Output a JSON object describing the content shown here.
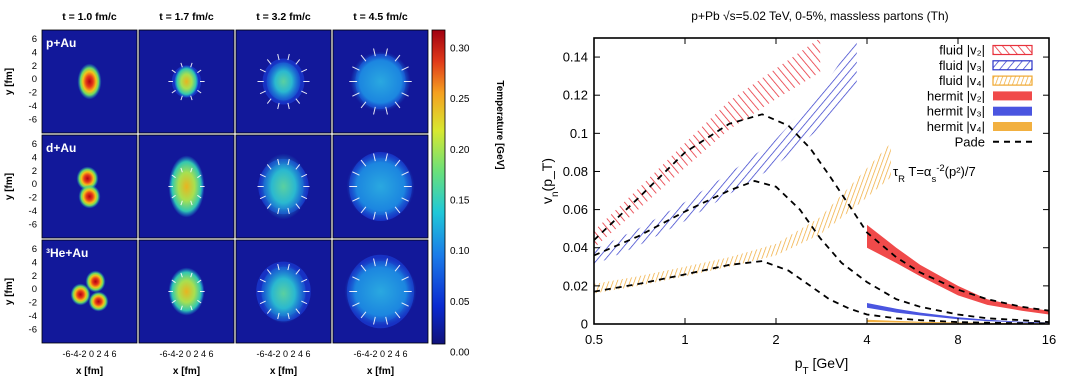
{
  "left_figure": {
    "time_labels": [
      "t = 1.0 fm/c",
      "t = 1.7 fm/c",
      "t = 3.2 fm/c",
      "t = 4.5 fm/c"
    ],
    "row_labels": [
      "p+Au",
      "d+Au",
      "³He+Au"
    ],
    "x_axis_label": "x [fm]",
    "y_axis_label": "y [fm]",
    "x_tick_text": "-6-4-2 0 2 4 6",
    "y_ticks": [
      "6",
      "4",
      "2",
      "0",
      "-2",
      "-4",
      "-6"
    ],
    "colorbar": {
      "label": "Temperature [GeV]",
      "ticks": [
        "0.30",
        "0.25",
        "0.20",
        "0.15",
        "0.10",
        "0.05",
        "0.00"
      ]
    }
  },
  "chart_data": {
    "type": "area",
    "title": "p+Pb √s=5.02 TeV, 0-5%, massless partons (Th)",
    "xlabel": "p_T [GeV]",
    "ylabel": "v_n(p_T)",
    "xscale": "log",
    "xlim": [
      0.5,
      16
    ],
    "ylim": [
      0,
      0.15
    ],
    "x_ticks": [
      0.5,
      1,
      2,
      4,
      8,
      16
    ],
    "y_ticks": [
      0,
      0.02,
      0.04,
      0.06,
      0.08,
      0.1,
      0.12,
      0.14
    ],
    "x_tick_labels": [
      "0.5",
      "1",
      "2",
      "4",
      "8",
      "16"
    ],
    "y_tick_labels": [
      "0",
      "0.02",
      "0.04",
      "0.06",
      "0.08",
      "0.1",
      "0.12",
      "0.14"
    ],
    "annotation": "τ_R T=α_s^-2(p²)/7",
    "legend_position": "top-right",
    "legend": [
      {
        "label": "fluid |v₂|",
        "style": "hatch",
        "color": "#e8323c"
      },
      {
        "label": "fluid |v₃|",
        "style": "hatch",
        "color": "#2b34c9"
      },
      {
        "label": "fluid |v₄|",
        "style": "hatch",
        "color": "#f0a830"
      },
      {
        "label": "hermit |v₂|",
        "style": "solid",
        "color": "#f04a4a"
      },
      {
        "label": "hermit |v₃|",
        "style": "solid",
        "color": "#4a55e0"
      },
      {
        "label": "hermit |v₄|",
        "style": "solid",
        "color": "#f2b040"
      },
      {
        "label": "Pade",
        "style": "dashed",
        "color": "#000000"
      }
    ],
    "series": [
      {
        "name": "fluid |v₂|",
        "kind": "band",
        "color": "#e8323c",
        "x": [
          0.5,
          0.7,
          1.0,
          1.4,
          2.0,
          2.8
        ],
        "low": [
          0.04,
          0.06,
          0.082,
          0.102,
          0.118,
          0.132
        ],
        "high": [
          0.049,
          0.071,
          0.095,
          0.117,
          0.134,
          0.15
        ]
      },
      {
        "name": "fluid |v₃|",
        "kind": "band",
        "color": "#2b34c9",
        "x": [
          0.5,
          0.7,
          1.0,
          1.4,
          2.0,
          2.8,
          3.7
        ],
        "low": [
          0.031,
          0.041,
          0.054,
          0.068,
          0.083,
          0.103,
          0.124
        ],
        "high": [
          0.039,
          0.05,
          0.064,
          0.079,
          0.097,
          0.122,
          0.15
        ]
      },
      {
        "name": "fluid |v₄|",
        "kind": "band",
        "color": "#f0a830",
        "x": [
          0.5,
          0.7,
          1.0,
          1.4,
          2.0,
          2.8,
          3.7,
          4.8
        ],
        "low": [
          0.016,
          0.02,
          0.025,
          0.03,
          0.036,
          0.047,
          0.062,
          0.077
        ],
        "high": [
          0.021,
          0.025,
          0.03,
          0.035,
          0.042,
          0.056,
          0.076,
          0.095
        ]
      },
      {
        "name": "hermit |v₂|",
        "kind": "band",
        "color": "#f04a4a",
        "x": [
          4.0,
          5.0,
          6.0,
          8.0,
          10.0,
          13.0,
          16.0
        ],
        "low": [
          0.04,
          0.032,
          0.025,
          0.015,
          0.01,
          0.007,
          0.005
        ],
        "high": [
          0.052,
          0.04,
          0.031,
          0.02,
          0.013,
          0.009,
          0.007
        ]
      },
      {
        "name": "hermit |v₃|",
        "kind": "band",
        "color": "#4a55e0",
        "x": [
          4.0,
          5.0,
          6.0,
          8.0,
          10.0,
          13.0,
          16.0
        ],
        "low": [
          0.0085,
          0.006,
          0.0045,
          0.0025,
          0.0015,
          0.0008,
          0.0004
        ],
        "high": [
          0.011,
          0.008,
          0.006,
          0.0035,
          0.0022,
          0.0012,
          0.0008
        ]
      },
      {
        "name": "hermit |v₄|",
        "kind": "band",
        "color": "#f2b040",
        "x": [
          4.0,
          5.0,
          6.0,
          8.0,
          10.0,
          13.0,
          16.0
        ],
        "low": [
          0.001,
          0.0008,
          0.0006,
          0.0004,
          0.0003,
          0.0002,
          0.0001
        ],
        "high": [
          0.0022,
          0.0016,
          0.0012,
          0.0008,
          0.0006,
          0.0004,
          0.0003
        ]
      },
      {
        "name": "Pade",
        "kind": "dashed",
        "color": "#000000",
        "x": [
          0.5,
          0.7,
          1.0,
          1.4,
          1.8,
          2.2,
          2.6,
          3.0,
          3.5,
          4.0,
          5.0,
          6.0,
          8.0,
          10.0,
          13.0,
          16.0
        ],
        "y": [
          0.044,
          0.066,
          0.09,
          0.105,
          0.11,
          0.104,
          0.092,
          0.078,
          0.062,
          0.048,
          0.035,
          0.027,
          0.018,
          0.013,
          0.009,
          0.007
        ]
      },
      {
        "name": "Pade",
        "kind": "dashed",
        "color": "#000000",
        "x": [
          0.5,
          0.7,
          1.0,
          1.4,
          1.7,
          2.0,
          2.4,
          2.8,
          3.3,
          4.0,
          5.0,
          6.0,
          8.0,
          10.0,
          13.0,
          16.0
        ],
        "y": [
          0.036,
          0.046,
          0.059,
          0.07,
          0.075,
          0.072,
          0.06,
          0.045,
          0.032,
          0.022,
          0.013,
          0.009,
          0.005,
          0.003,
          0.002,
          0.001
        ]
      },
      {
        "name": "Pade",
        "kind": "dashed",
        "color": "#000000",
        "x": [
          0.5,
          0.7,
          1.0,
          1.4,
          1.8,
          2.2,
          2.6,
          3.0,
          3.5,
          4.0,
          5.0,
          6.0,
          8.0,
          10.0,
          13.0,
          16.0
        ],
        "y": [
          0.017,
          0.021,
          0.026,
          0.031,
          0.033,
          0.028,
          0.02,
          0.013,
          0.008,
          0.005,
          0.003,
          0.002,
          0.001,
          0.0007,
          0.0004,
          0.0003
        ]
      }
    ]
  }
}
